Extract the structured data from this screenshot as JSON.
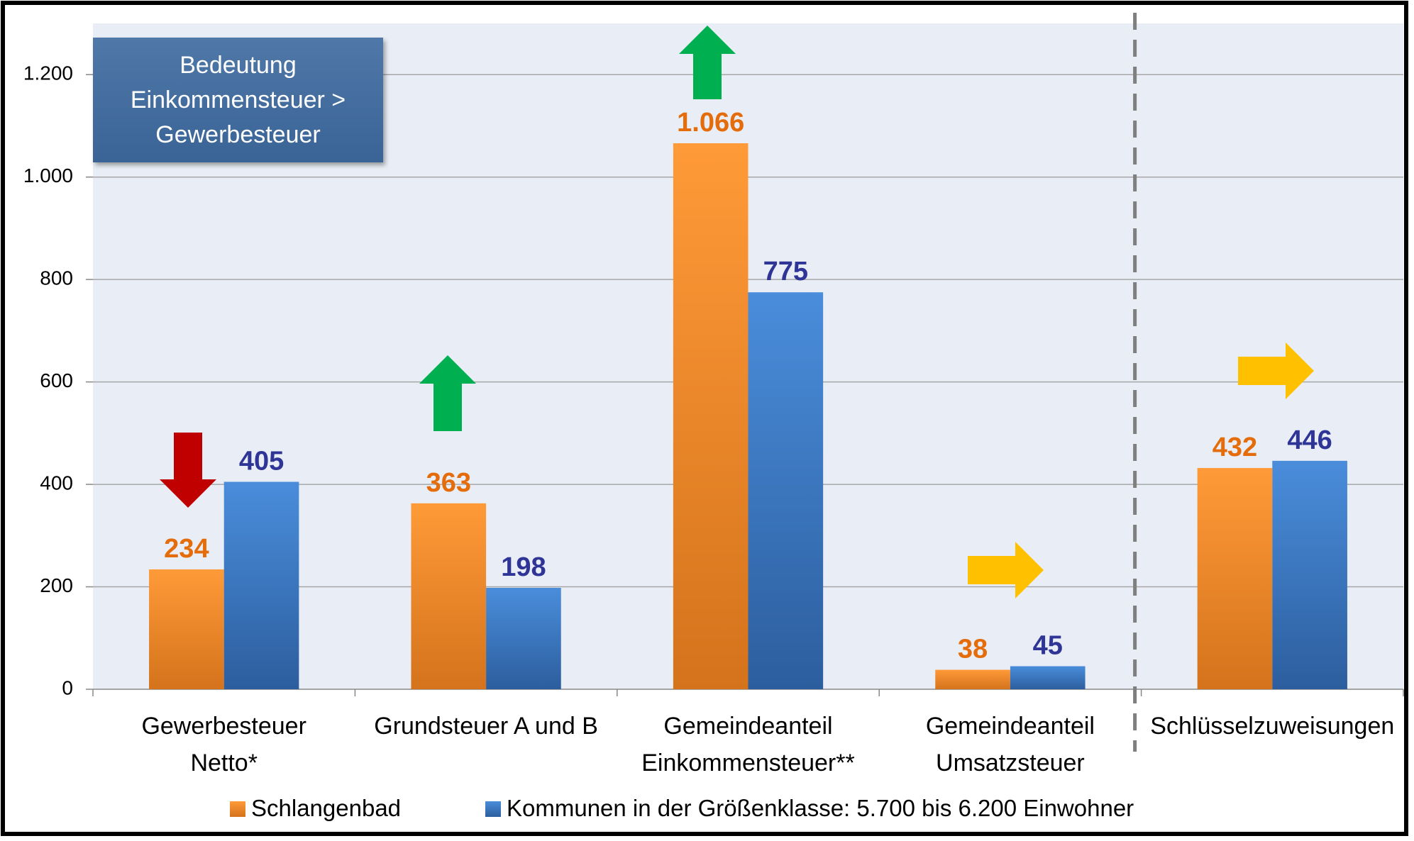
{
  "chart_data": {
    "type": "bar",
    "annotation": "Bedeutung\nEinkommensteuer >\nGewerbesteuer",
    "categories": [
      "Gewerbesteuer\nNetto*",
      "Grundsteuer A und B",
      "Gemeindeanteil\nEinkommensteuer**",
      "Gemeindeanteil\nUmsatzsteuer",
      "Schlüsselzuweisungen"
    ],
    "series": [
      {
        "name": "Schlangenbad",
        "color": "#f58220",
        "label_color": "#e46c0a",
        "values": [
          234,
          363,
          1066,
          38,
          432
        ],
        "value_labels": [
          "234",
          "363",
          "1.066",
          "38",
          "432"
        ]
      },
      {
        "name": "Kommunen in der Größenklasse: 5.700 bis 6.200 Einwohner",
        "color": "#3c7dcc",
        "label_color": "#2f3596",
        "values": [
          405,
          198,
          775,
          45,
          446
        ]
      }
    ],
    "ylim": [
      0,
      1300
    ],
    "yticks": [
      0,
      200,
      400,
      600,
      800,
      {
        "value": 1000,
        "label": "1.000"
      },
      {
        "value": 1200,
        "label": "1.200"
      }
    ],
    "grid": true
  }
}
